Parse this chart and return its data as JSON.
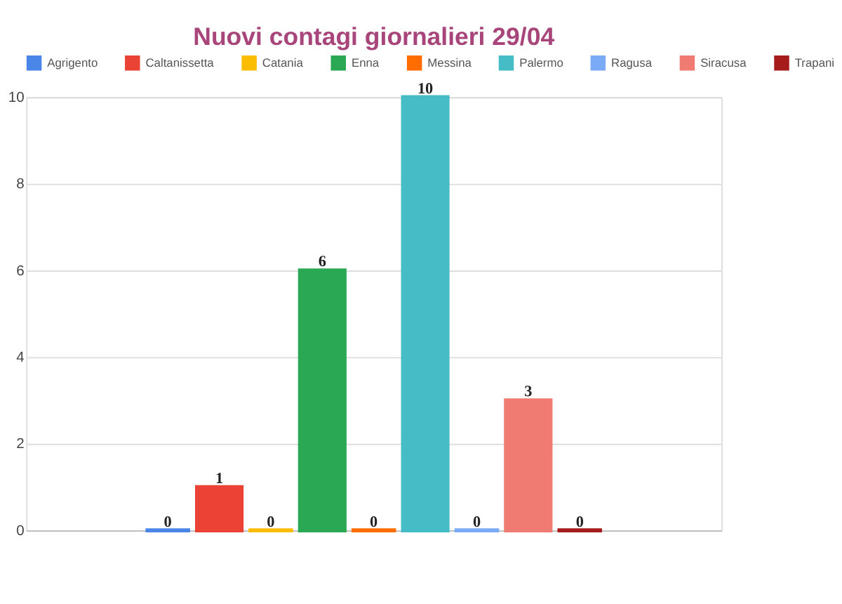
{
  "chart_data": {
    "type": "bar",
    "title": "Nuovi contagi giornalieri 29/04",
    "categories": [
      null
    ],
    "series": [
      {
        "name": "Agrigento",
        "color": "#4a86e8",
        "values": [
          0
        ]
      },
      {
        "name": "Caltanissetta",
        "color": "#ea4335",
        "values": [
          1
        ]
      },
      {
        "name": "Catania",
        "color": "#fbbc04",
        "values": [
          0
        ]
      },
      {
        "name": "Enna",
        "color": "#2aa853",
        "values": [
          6
        ]
      },
      {
        "name": "Messina",
        "color": "#ff6d01",
        "values": [
          0
        ]
      },
      {
        "name": "Palermo",
        "color": "#46bdc6",
        "values": [
          10
        ]
      },
      {
        "name": "Ragusa",
        "color": "#7baaf7",
        "values": [
          0
        ]
      },
      {
        "name": "Siracusa",
        "color": "#f07b72",
        "values": [
          3
        ]
      },
      {
        "name": "Trapani",
        "color": "#a61c1c",
        "values": [
          0
        ]
      }
    ],
    "ylim": [
      0,
      10
    ],
    "yticks": [
      0,
      2,
      4,
      6,
      8,
      10
    ],
    "grid": "y",
    "legend": "top",
    "tick_labels": "y",
    "data_labels": true
  }
}
